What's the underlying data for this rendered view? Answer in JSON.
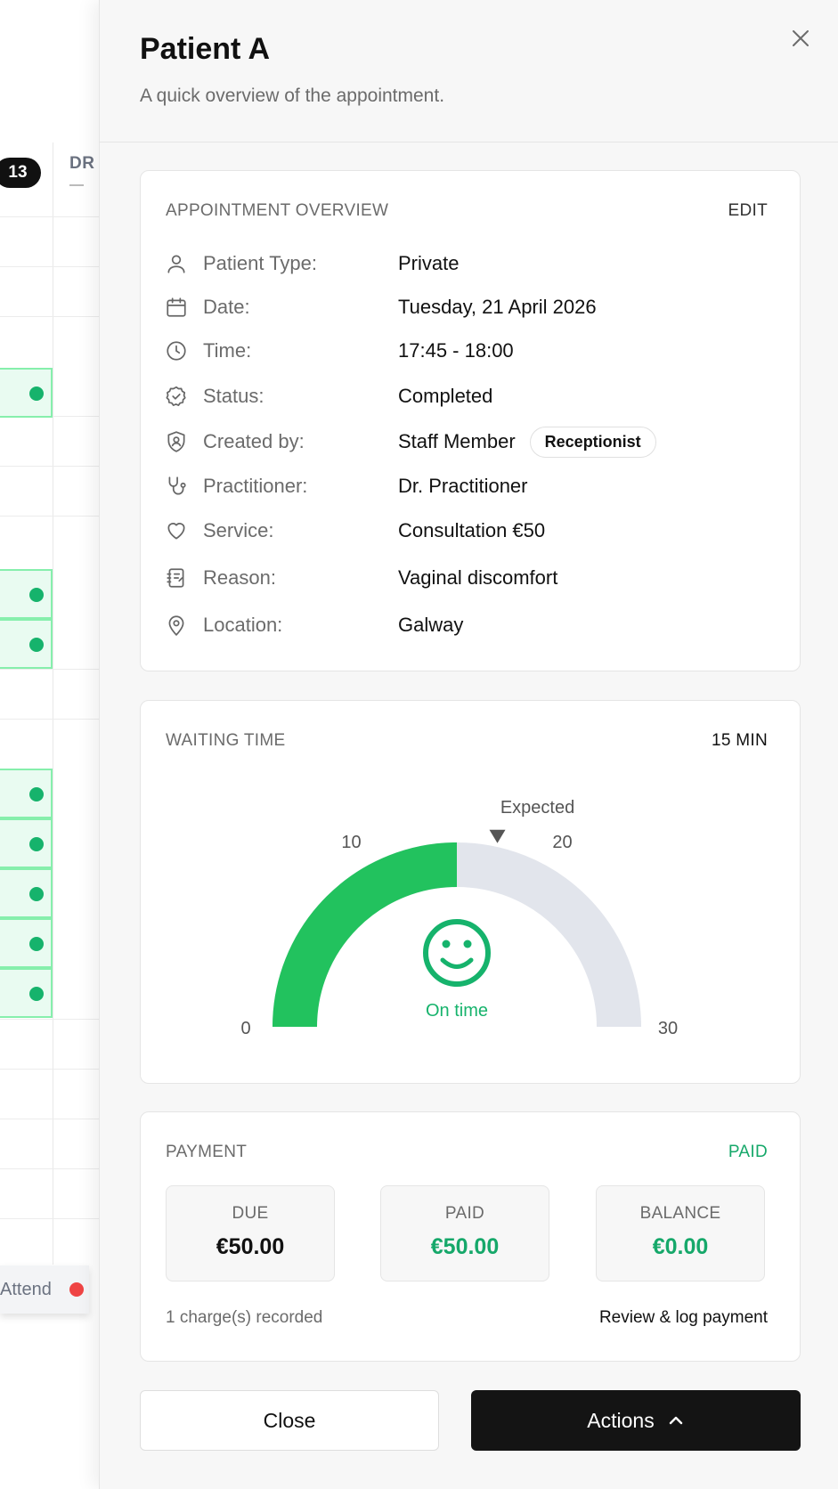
{
  "background": {
    "day_badge": "13",
    "column_header": "DR",
    "legend_label": "Attend"
  },
  "drawer": {
    "title": "Patient A",
    "subtitle": "A quick overview of the appointment."
  },
  "overview": {
    "heading": "APPOINTMENT OVERVIEW",
    "edit_label": "EDIT",
    "rows": [
      {
        "icon": "user-icon",
        "label": "Patient Type:",
        "value": "Private"
      },
      {
        "icon": "calendar-icon",
        "label": "Date:",
        "value": "Tuesday, 21 April 2026"
      },
      {
        "icon": "clock-icon",
        "label": "Time:",
        "value": "17:45 - 18:00"
      },
      {
        "icon": "badge-check-icon",
        "label": "Status:",
        "value": "Completed"
      },
      {
        "icon": "shield-user-icon",
        "label": "Created by:",
        "value": "Staff Member",
        "tag": "Receptionist"
      },
      {
        "icon": "stethoscope-icon",
        "label": "Practitioner:",
        "value": "Dr. Practitioner"
      },
      {
        "icon": "heart-icon",
        "label": "Service:",
        "value": "Consultation €50"
      },
      {
        "icon": "notebook-icon",
        "label": "Reason:",
        "value": "Vaginal discomfort"
      },
      {
        "icon": "map-pin-icon",
        "label": "Location:",
        "value": "Galway"
      }
    ]
  },
  "waiting": {
    "heading": "WAITING TIME",
    "value_label": "15 MIN",
    "min": 0,
    "max": 30,
    "current": 15,
    "expected": 17,
    "expected_label": "Expected",
    "ticks": [
      "0",
      "10",
      "20",
      "30"
    ],
    "status_label": "On time",
    "colors": {
      "fill": "#22c25e",
      "track": "#e2e5ec",
      "accent": "#16b36c",
      "marker": "#555555"
    }
  },
  "payment": {
    "heading": "PAYMENT",
    "status": "PAID",
    "boxes": [
      {
        "label": "DUE",
        "value": "€50.00"
      },
      {
        "label": "PAID",
        "value": "€50.00"
      },
      {
        "label": "BALANCE",
        "value": "€0.00"
      }
    ],
    "charges_note": "1 charge(s) recorded",
    "review_link": "Review & log payment",
    "colors": {
      "accent": "#16a86a"
    }
  },
  "footer": {
    "close_label": "Close",
    "actions_label": "Actions"
  }
}
